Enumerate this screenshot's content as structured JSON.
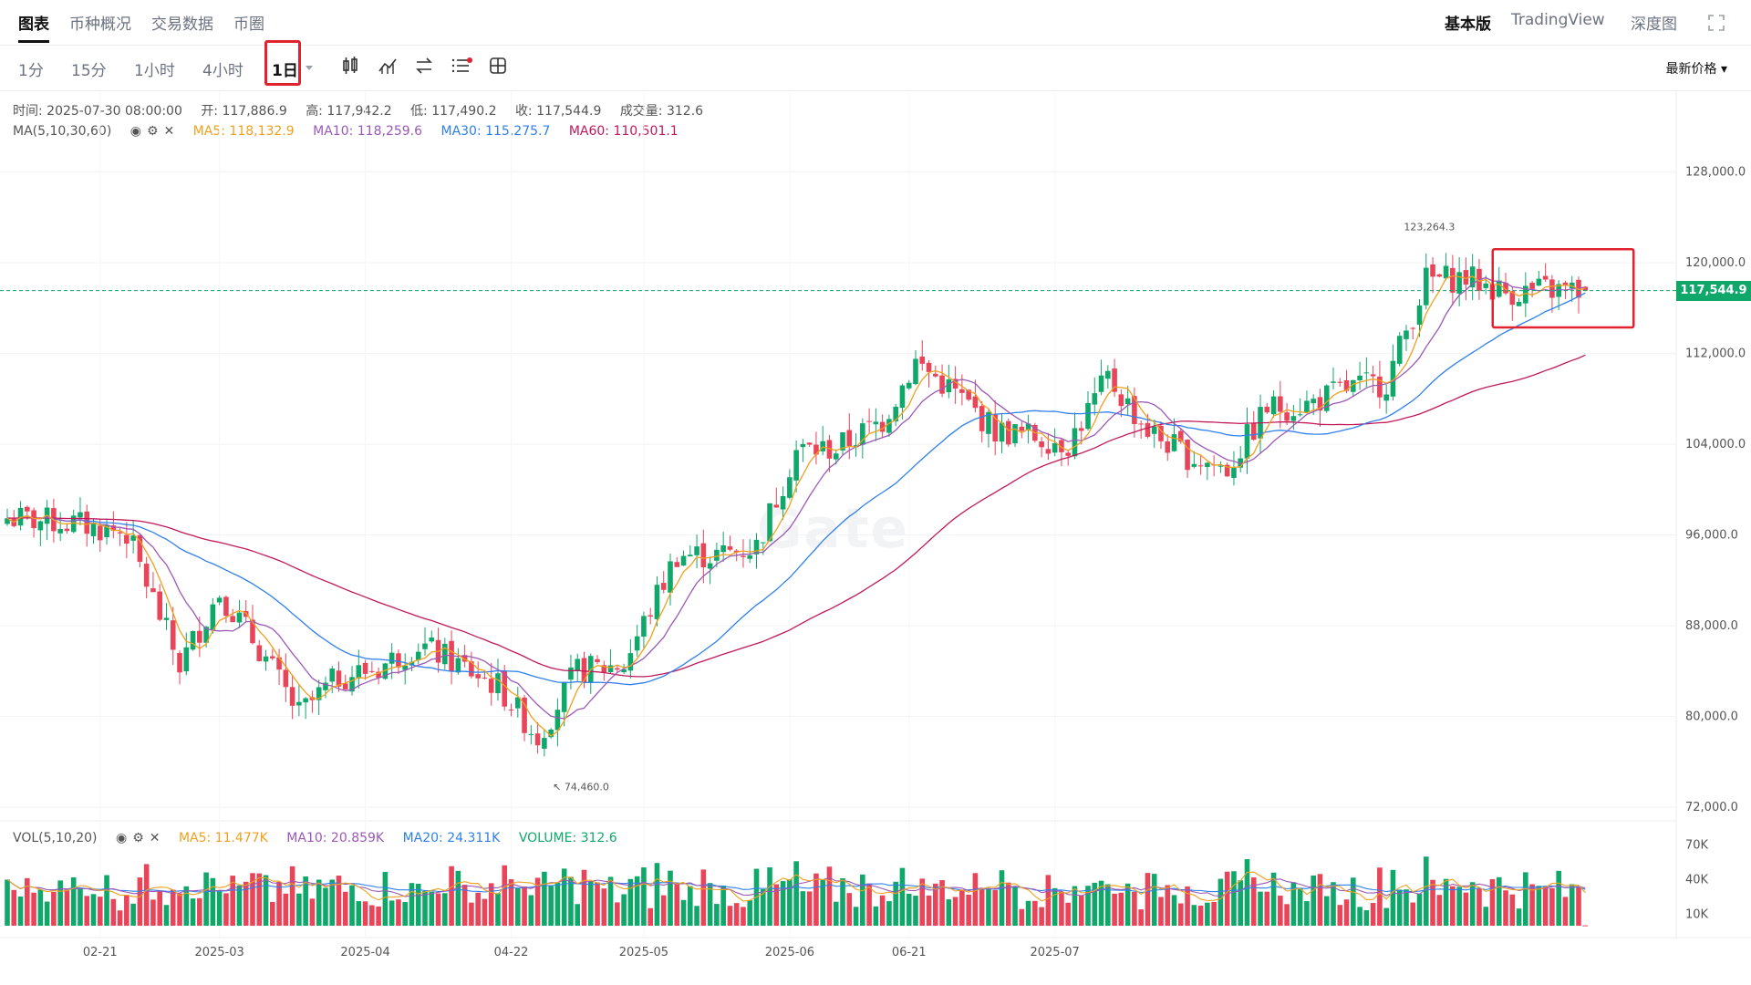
{
  "tabs": [
    "图表",
    "币种概况",
    "交易数据",
    "币圈"
  ],
  "right_tabs": [
    "基本版",
    "TradingView",
    "深度图"
  ],
  "timeframes": [
    "1分",
    "15分",
    "1小时",
    "4小时",
    "1日"
  ],
  "price_type": "最新价格",
  "ohlc": {
    "time": "时间: 2025-07-30 08:00:00",
    "open": "开: 117,886.9",
    "high": "高: 117,942.2",
    "low": "低: 117,490.2",
    "close": "收: 117,544.9",
    "volume": "成交量: 312.6"
  },
  "ma_legend": {
    "name": "MA(5,10,30,60)",
    "ma5": "MA5: 118,132.9",
    "ma10": "MA10: 118,259.6",
    "ma30": "MA30: 115,275.7",
    "ma60": "MA60: 110,501.1"
  },
  "vol_legend": {
    "name": "VOL(5,10,20)",
    "ma5": "MA5: 11.477K",
    "ma10": "MA10: 20.859K",
    "ma20": "MA20: 24.311K",
    "volume": "VOLUME: 312.6"
  },
  "current_price": "117,544.9",
  "watermark": "Gate",
  "colors": {
    "up": "#0fa86a",
    "down": "#e8445a",
    "ma5": "#f0a01e",
    "ma10": "#9b59b6",
    "ma30": "#2f80ed",
    "ma60": "#c2185b",
    "highlight": "#e0232e"
  },
  "chart_data": {
    "type": "candlestick",
    "x_labels": [
      "02-21",
      "2025-03",
      "2025-04",
      "04-22",
      "2025-05",
      "2025-06",
      "06-21",
      "2025-07"
    ],
    "y_ticks": [
      "128,000.0",
      "120,000.0",
      "112,000.0",
      "104,000.0",
      "96,000.0",
      "88,000.0",
      "80,000.0",
      "72,000.0"
    ],
    "y_range": [
      70800,
      129500
    ],
    "max_label": "123,264.3",
    "min_label": "74,460.0",
    "vol_ticks": [
      "70K",
      "40K",
      "10K"
    ],
    "close_anchors": [
      [
        0,
        97500
      ],
      [
        10,
        97000
      ],
      [
        18,
        96200
      ],
      [
        26,
        84500
      ],
      [
        32,
        91000
      ],
      [
        38,
        86000
      ],
      [
        44,
        80200
      ],
      [
        50,
        83500
      ],
      [
        56,
        84300
      ],
      [
        62,
        86400
      ],
      [
        68,
        84600
      ],
      [
        74,
        82700
      ],
      [
        80,
        78200
      ],
      [
        86,
        84000
      ],
      [
        93,
        84600
      ],
      [
        101,
        94300
      ],
      [
        107,
        94200
      ],
      [
        113,
        95000
      ],
      [
        119,
        103500
      ],
      [
        125,
        103600
      ],
      [
        132,
        106100
      ],
      [
        137,
        111300
      ],
      [
        143,
        108500
      ],
      [
        149,
        105200
      ],
      [
        155,
        104700
      ],
      [
        160,
        104100
      ],
      [
        166,
        109800
      ],
      [
        172,
        105200
      ],
      [
        178,
        103000
      ],
      [
        184,
        101800
      ],
      [
        190,
        107200
      ],
      [
        196,
        107500
      ],
      [
        202,
        108900
      ],
      [
        208,
        109500
      ],
      [
        214,
        118500
      ],
      [
        220,
        118700
      ],
      [
        226,
        117400
      ],
      [
        232,
        117600
      ],
      [
        238,
        117500
      ]
    ],
    "last_values": {
      "close": 117544.9,
      "ma5": 118132.9,
      "ma10": 118259.6,
      "ma30": 115275.7,
      "ma60": 110501.1,
      "volume": 312.6
    }
  }
}
